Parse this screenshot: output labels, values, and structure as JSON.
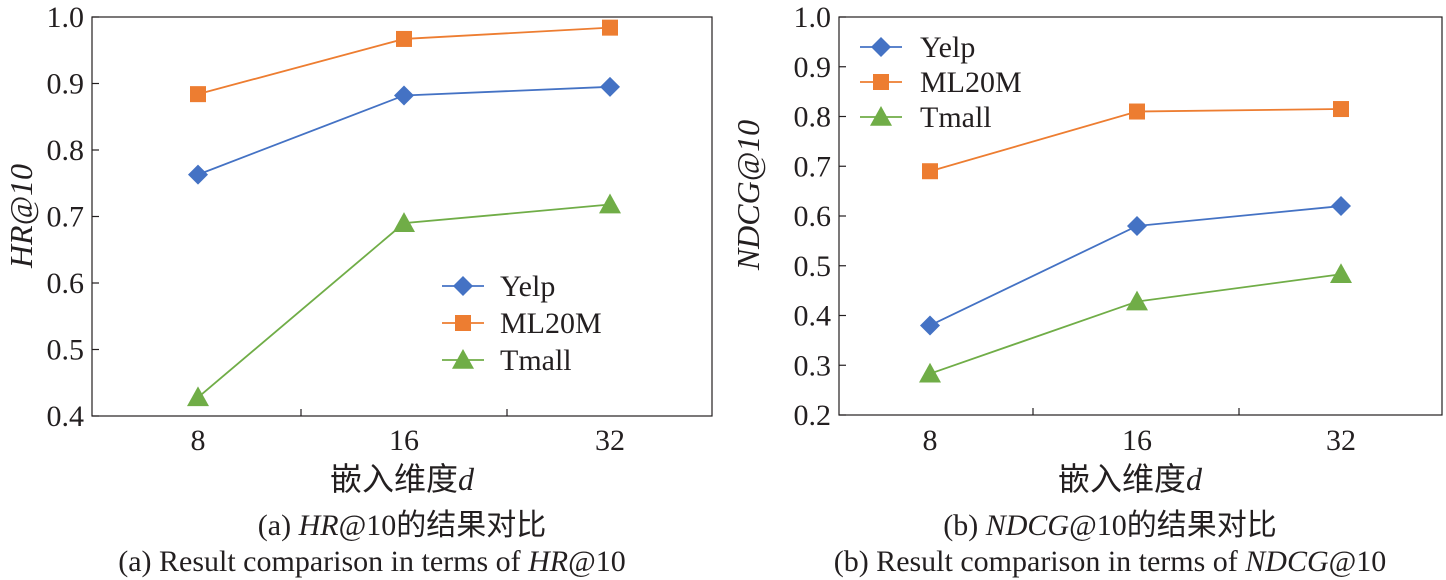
{
  "chart_data": [
    {
      "type": "line",
      "categories": [
        "8",
        "16",
        "32"
      ],
      "xlabel": "嵌入维度",
      "xlabel_var": "d",
      "ylabel": "HR@10",
      "ylim": [
        0.4,
        1.0
      ],
      "yticks": [
        "0.4",
        "0.5",
        "0.6",
        "0.7",
        "0.8",
        "0.9",
        "1.0"
      ],
      "legend_position": "lower-right",
      "series": [
        {
          "name": "Yelp",
          "values": [
            0.763,
            0.882,
            0.895
          ],
          "color": "#4472c4",
          "marker": "diamond"
        },
        {
          "name": "ML20M",
          "values": [
            0.884,
            0.967,
            0.984
          ],
          "color": "#ed7d31",
          "marker": "square"
        },
        {
          "name": "Tmall",
          "values": [
            0.428,
            0.69,
            0.718
          ],
          "color": "#70ad47",
          "marker": "triangle"
        }
      ],
      "caption_cn": {
        "prefix": "(a) ",
        "metric": "HR",
        "suffix": "@10的结果对比"
      },
      "caption_en": {
        "prefix": "(a) Result comparison in terms of ",
        "metric": "HR",
        "suffix": "@10"
      }
    },
    {
      "type": "line",
      "categories": [
        "8",
        "16",
        "32"
      ],
      "xlabel": "嵌入维度",
      "xlabel_var": "d",
      "ylabel": "NDCG@10",
      "ylim": [
        0.2,
        1.0
      ],
      "yticks": [
        "0.2",
        "0.3",
        "0.4",
        "0.5",
        "0.6",
        "0.7",
        "0.8",
        "0.9",
        "1.0"
      ],
      "legend_position": "top-left",
      "series": [
        {
          "name": "Yelp",
          "values": [
            0.38,
            0.58,
            0.62
          ],
          "color": "#4472c4",
          "marker": "diamond"
        },
        {
          "name": "ML20M",
          "values": [
            0.69,
            0.81,
            0.815
          ],
          "color": "#ed7d31",
          "marker": "square"
        },
        {
          "name": "Tmall",
          "values": [
            0.283,
            0.428,
            0.483
          ],
          "color": "#70ad47",
          "marker": "triangle"
        }
      ],
      "caption_cn": {
        "prefix": "(b) ",
        "metric": "NDCG",
        "suffix": "@10的结果对比"
      },
      "caption_en": {
        "prefix": "(b) Result comparison in terms of ",
        "metric": "NDCG",
        "suffix": "@10"
      }
    }
  ]
}
